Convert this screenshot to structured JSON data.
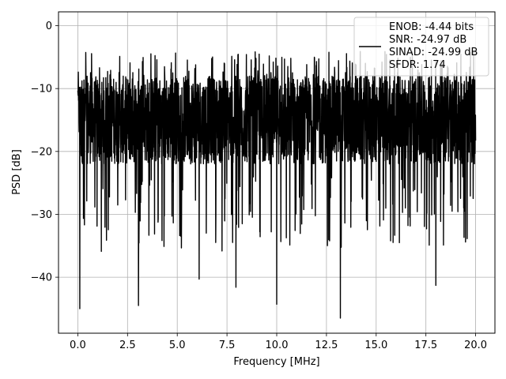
{
  "chart_data": {
    "type": "line",
    "title": "",
    "xlabel": "Frequency [MHz]",
    "ylabel": "PSD [dB]",
    "xlim": [
      -0.97,
      20.97
    ],
    "ylim": [
      -48.9,
      2.2
    ],
    "xticks": [
      0.0,
      2.5,
      5.0,
      7.5,
      10.0,
      12.5,
      15.0,
      17.5,
      20.0
    ],
    "xtick_labels": [
      "0.0",
      "2.5",
      "5.0",
      "7.5",
      "10.0",
      "12.5",
      "15.0",
      "17.5",
      "20.0"
    ],
    "yticks": [
      0,
      -10,
      -20,
      -30,
      -40
    ],
    "ytick_labels": [
      "0",
      "−10",
      "−20",
      "−30",
      "−40"
    ],
    "grid": true,
    "legend_position": "top-right",
    "series": [
      {
        "color": "#000000",
        "x_range": [
          0.0,
          20.0
        ],
        "typical_band": [
          -22,
          -8
        ],
        "min_observed": -46.5,
        "max_observed": -3.5,
        "notable_dips": [
          {
            "x": 0.1,
            "y": -45
          },
          {
            "x": 3.05,
            "y": -44.5
          },
          {
            "x": 6.1,
            "y": -40.3
          },
          {
            "x": 7.95,
            "y": -41.6
          },
          {
            "x": 10.0,
            "y": -44.3
          },
          {
            "x": 13.2,
            "y": -46.5
          },
          {
            "x": 18.0,
            "y": -41.3
          }
        ]
      }
    ]
  },
  "legend": {
    "entries": [
      "ENOB: -4.44 bits",
      "SNR: -24.97 dB",
      "SINAD: -24.99 dB",
      "SFDR: 1.74"
    ],
    "line_color": "#000000"
  }
}
